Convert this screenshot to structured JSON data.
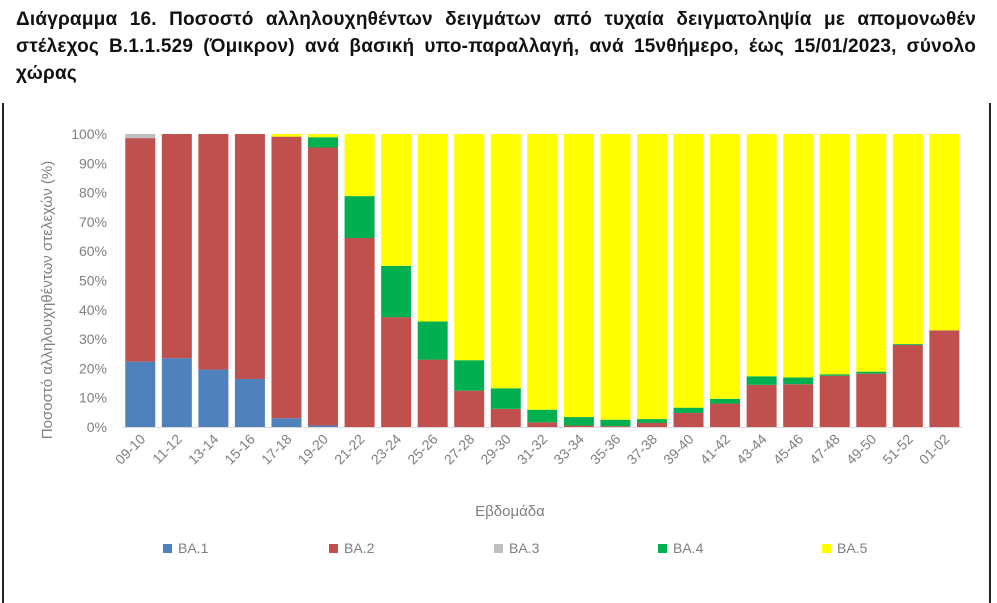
{
  "title": "Διάγραμμα 16. Ποσοστό αλληλουχηθέντων δειγμάτων από τυχαία δειγματοληψία με απομονωθέν στέλεχος Β.1.1.529 (Όμικρον) ανά βασική υπο-παραλλαγή, ανά 15νθήμερο, έως 15/01/2023, σύνολο χώρας",
  "chart_data": {
    "type": "bar",
    "stacked": true,
    "title": "Διάγραμμα 16. Ποσοστό αλληλουχηθέντων δειγμάτων από τυχαία δειγματοληψία με απομονωθέν στέλεχος Β.1.1.529 (Όμικρον) ανά βασική υπο-παραλλαγή, ανά 15νθήμερο, έως 15/01/2023, σύνολο χώρας",
    "xlabel": "Εβδομάδα",
    "ylabel": "Ποσοστό αλληλουχηθέντων στελεχών (%)",
    "ylim": [
      0,
      100
    ],
    "yticks": [
      "0%",
      "10%",
      "20%",
      "30%",
      "40%",
      "50%",
      "60%",
      "70%",
      "80%",
      "90%",
      "100%"
    ],
    "legend_position": "bottom",
    "categories": [
      "09-10",
      "11-12",
      "13-14",
      "15-16",
      "17-18",
      "19-20",
      "21-22",
      "23-24",
      "25-26",
      "27-28",
      "29-30",
      "31-32",
      "33-34",
      "35-36",
      "37-38",
      "39-40",
      "41-42",
      "43-44",
      "45-46",
      "47-48",
      "49-50",
      "51-52",
      "01-02"
    ],
    "series": [
      {
        "name": "BA.1",
        "color": "#4f81bd",
        "values": [
          22.3,
          23.5,
          19.6,
          16.4,
          3.0,
          0.5,
          0,
          0,
          0,
          0,
          0,
          0,
          0,
          0,
          0,
          0,
          0,
          0,
          0,
          0,
          0,
          0,
          0
        ]
      },
      {
        "name": "BA.2",
        "color": "#c0504d",
        "values": [
          76.3,
          76.5,
          80.4,
          83.6,
          96.1,
          94.9,
          64.5,
          37.5,
          23.0,
          12.4,
          6.2,
          1.6,
          0.5,
          0.3,
          1.4,
          4.8,
          8.0,
          14.4,
          14.6,
          17.5,
          18.2,
          28.0,
          33.0
        ]
      },
      {
        "name": "BA.3",
        "color": "#bfbfbf",
        "values": [
          1.4,
          0,
          0,
          0,
          0,
          0,
          0,
          0,
          0,
          0,
          0,
          0,
          0,
          0,
          0,
          0,
          0,
          0,
          0,
          0,
          0,
          0,
          0
        ]
      },
      {
        "name": "BA.4",
        "color": "#00b050",
        "values": [
          0,
          0,
          0,
          0,
          0,
          3.5,
          14.3,
          17.5,
          13.0,
          10.4,
          7.0,
          4.3,
          2.9,
          2.2,
          1.3,
          1.8,
          1.6,
          2.9,
          2.3,
          0.5,
          0.7,
          0.3,
          0
        ]
      },
      {
        "name": "BA.5",
        "color": "#ffff00",
        "values": [
          0,
          0,
          0,
          0,
          0.9,
          1.1,
          21.2,
          45.0,
          64.0,
          77.2,
          86.8,
          94.1,
          96.6,
          97.5,
          97.3,
          93.4,
          90.4,
          82.7,
          83.1,
          82.0,
          81.1,
          71.7,
          67.0
        ]
      }
    ]
  }
}
